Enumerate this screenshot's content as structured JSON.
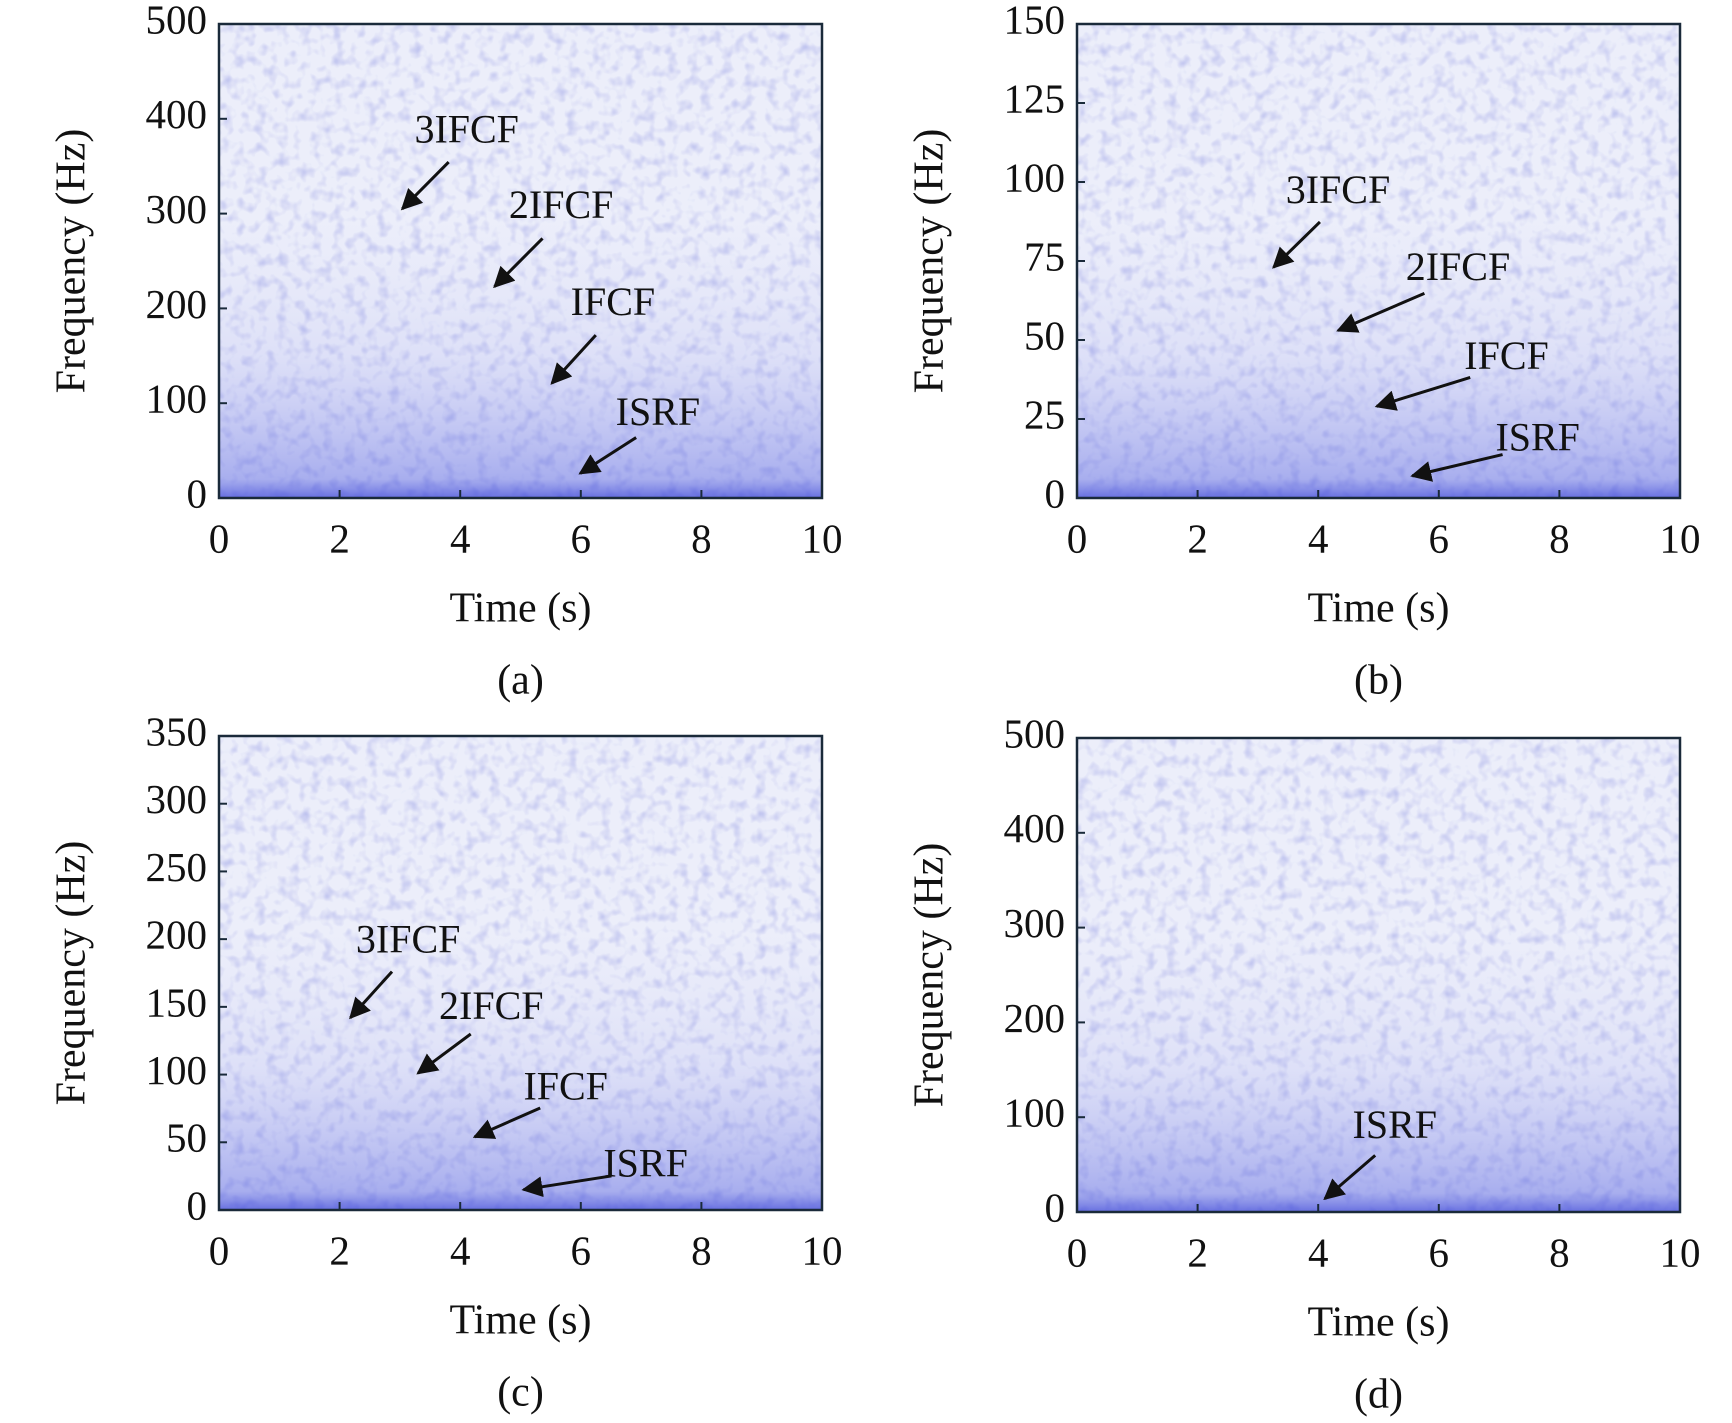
{
  "chart_data": [
    {
      "type": "heatmap",
      "caption": "(a)",
      "xlabel": "Time (s)",
      "ylabel": "Frequency (Hz)",
      "xlim": [
        0,
        10
      ],
      "xticks": [
        0,
        2,
        4,
        6,
        8,
        10
      ],
      "ylim": [
        0,
        500
      ],
      "yticks": [
        0,
        100,
        200,
        300,
        400,
        500
      ],
      "annotations": [
        {
          "text": "3IFCF",
          "x": 3.04,
          "y": 305
        },
        {
          "text": "2IFCF",
          "x": 4.57,
          "y": 223
        },
        {
          "text": "IFCF",
          "x": 5.52,
          "y": 121
        },
        {
          "text": "ISRF",
          "x": 5.99,
          "y": 26
        }
      ]
    },
    {
      "type": "heatmap",
      "caption": "(b)",
      "xlabel": "Time (s)",
      "ylabel": "Frequency (Hz)",
      "xlim": [
        0,
        10
      ],
      "xticks": [
        0,
        2,
        4,
        6,
        8,
        10
      ],
      "ylim": [
        0,
        150
      ],
      "yticks": [
        0,
        25,
        50,
        75,
        100,
        125,
        150
      ],
      "annotations": [
        {
          "text": "3IFCF",
          "x": 3.26,
          "y": 73
        },
        {
          "text": "2IFCF",
          "x": 4.33,
          "y": 53
        },
        {
          "text": "IFCF",
          "x": 4.97,
          "y": 29
        },
        {
          "text": "ISRF",
          "x": 5.56,
          "y": 7
        }
      ]
    },
    {
      "type": "heatmap",
      "caption": "(c)",
      "xlabel": "Time (s)",
      "ylabel": "Frequency (Hz)",
      "xlim": [
        0,
        10
      ],
      "xticks": [
        0,
        2,
        4,
        6,
        8,
        10
      ],
      "ylim": [
        0,
        350
      ],
      "yticks": [
        0,
        50,
        100,
        150,
        200,
        250,
        300,
        350
      ],
      "annotations": [
        {
          "text": "3IFCF",
          "x": 2.18,
          "y": 142
        },
        {
          "text": "2IFCF",
          "x": 3.3,
          "y": 101
        },
        {
          "text": "IFCF",
          "x": 4.24,
          "y": 54
        },
        {
          "text": "ISRF",
          "x": 5.05,
          "y": 15
        }
      ]
    },
    {
      "type": "heatmap",
      "caption": "(d)",
      "xlabel": "Time (s)",
      "ylabel": "Frequency (Hz)",
      "xlim": [
        0,
        10
      ],
      "xticks": [
        0,
        2,
        4,
        6,
        8,
        10
      ],
      "ylim": [
        0,
        500
      ],
      "yticks": [
        0,
        100,
        200,
        300,
        400,
        500
      ],
      "annotations": [
        {
          "text": "ISRF",
          "x": 4.11,
          "y": 14
        }
      ]
    }
  ]
}
